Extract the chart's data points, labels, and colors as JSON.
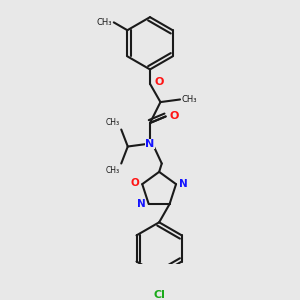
{
  "bg_color": "#e8e8e8",
  "bond_color": "#1a1a1a",
  "N_color": "#1414ff",
  "O_color": "#ff1414",
  "Cl_color": "#1aaa1a",
  "line_width": 1.5,
  "dbo": 0.012,
  "figsize": [
    3.0,
    3.0
  ],
  "dpi": 100,
  "xlim": [
    0.0,
    1.0
  ],
  "ylim": [
    0.0,
    1.0
  ]
}
